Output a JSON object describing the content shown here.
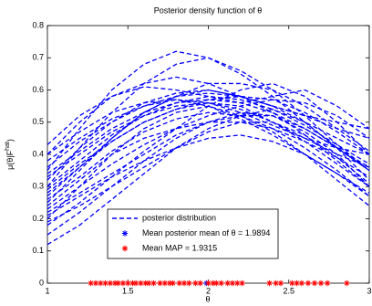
{
  "chart_data": {
    "type": "line",
    "title": "Posterior density function of θ",
    "xlabel": "θ",
    "ylabel": {
      "text": "μ(θ|F",
      "sup": "hat",
      "end": ")"
    },
    "x": [
      1,
      1.2,
      1.4,
      1.6,
      1.8,
      2,
      2.2,
      2.4,
      2.6,
      2.8,
      3
    ],
    "xlim": [
      1,
      3
    ],
    "ylim": [
      0,
      0.8
    ],
    "xticks": [
      1,
      1.5,
      2,
      2.5,
      3
    ],
    "yticks": [
      0,
      0.1,
      0.2,
      0.3,
      0.4,
      0.5,
      0.6,
      0.7,
      0.8
    ],
    "line_color": "#0000ff",
    "legend": [
      "posterior distribution",
      "Mean posterior mean of θ = 1.9894",
      "Mean MAP = 1.9315"
    ],
    "mean_color": "#0000ff",
    "map_color": "#ff0000",
    "mean_posterior": 1.9894,
    "map_points": [
      1.27,
      1.3,
      1.33,
      1.36,
      1.39,
      1.42,
      1.44,
      1.47,
      1.5,
      1.53,
      1.55,
      1.58,
      1.61,
      1.63,
      1.66,
      1.7,
      1.73,
      1.76,
      1.78,
      1.82,
      1.85,
      1.88,
      1.92,
      1.95,
      2.0,
      2.03,
      2.05,
      2.08,
      2.12,
      2.15,
      2.18,
      2.21,
      2.38,
      2.42,
      2.45,
      2.52,
      2.55,
      2.58,
      2.62,
      2.66,
      2.7,
      2.74,
      2.86
    ],
    "series": [
      {
        "values": [
          0.2,
          0.3,
          0.4,
          0.48,
          0.53,
          0.55,
          0.52,
          0.47,
          0.4,
          0.32,
          0.24
        ]
      },
      {
        "values": [
          0.25,
          0.35,
          0.45,
          0.53,
          0.58,
          0.6,
          0.58,
          0.53,
          0.46,
          0.38,
          0.3
        ]
      },
      {
        "values": [
          0.3,
          0.42,
          0.53,
          0.62,
          0.68,
          0.7,
          0.66,
          0.6,
          0.52,
          0.43,
          0.35
        ]
      },
      {
        "values": [
          0.35,
          0.48,
          0.6,
          0.68,
          0.72,
          0.7,
          0.65,
          0.58,
          0.5,
          0.42,
          0.35
        ]
      },
      {
        "values": [
          0.4,
          0.5,
          0.58,
          0.62,
          0.64,
          0.62,
          0.58,
          0.55,
          0.52,
          0.48,
          0.45
        ]
      },
      {
        "values": [
          0.43,
          0.52,
          0.58,
          0.61,
          0.6,
          0.58,
          0.56,
          0.58,
          0.6,
          0.55,
          0.48
        ]
      },
      {
        "values": [
          0.22,
          0.28,
          0.34,
          0.4,
          0.46,
          0.5,
          0.52,
          0.52,
          0.48,
          0.42,
          0.35
        ]
      },
      {
        "values": [
          0.15,
          0.22,
          0.3,
          0.38,
          0.45,
          0.5,
          0.53,
          0.52,
          0.47,
          0.4,
          0.3
        ]
      },
      {
        "values": [
          0.12,
          0.18,
          0.26,
          0.34,
          0.42,
          0.48,
          0.52,
          0.54,
          0.5,
          0.42,
          0.32
        ]
      },
      {
        "values": [
          0.28,
          0.36,
          0.44,
          0.5,
          0.54,
          0.56,
          0.55,
          0.5,
          0.44,
          0.37,
          0.3
        ]
      },
      {
        "values": [
          0.33,
          0.4,
          0.47,
          0.52,
          0.55,
          0.56,
          0.54,
          0.5,
          0.45,
          0.4,
          0.36
        ]
      },
      {
        "values": [
          0.38,
          0.45,
          0.51,
          0.55,
          0.57,
          0.56,
          0.53,
          0.49,
          0.45,
          0.42,
          0.4
        ]
      },
      {
        "values": [
          0.26,
          0.33,
          0.41,
          0.47,
          0.51,
          0.53,
          0.52,
          0.48,
          0.42,
          0.35,
          0.27
        ]
      },
      {
        "values": [
          0.21,
          0.27,
          0.33,
          0.38,
          0.42,
          0.45,
          0.46,
          0.44,
          0.4,
          0.34,
          0.27
        ]
      },
      {
        "values": [
          0.18,
          0.25,
          0.33,
          0.41,
          0.48,
          0.55,
          0.6,
          0.62,
          0.58,
          0.5,
          0.4
        ]
      },
      {
        "values": [
          0.32,
          0.42,
          0.5,
          0.56,
          0.59,
          0.6,
          0.58,
          0.55,
          0.52,
          0.5,
          0.48
        ]
      },
      {
        "values": [
          0.24,
          0.32,
          0.4,
          0.45,
          0.48,
          0.5,
          0.5,
          0.48,
          0.44,
          0.39,
          0.33
        ]
      },
      {
        "values": [
          0.3,
          0.38,
          0.46,
          0.52,
          0.56,
          0.58,
          0.57,
          0.54,
          0.49,
          0.43,
          0.37
        ]
      },
      {
        "values": [
          0.36,
          0.44,
          0.5,
          0.55,
          0.58,
          0.59,
          0.58,
          0.55,
          0.5,
          0.45,
          0.4
        ]
      },
      {
        "values": [
          0.27,
          0.36,
          0.45,
          0.53,
          0.58,
          0.62,
          0.62,
          0.6,
          0.55,
          0.48,
          0.41
        ]
      },
      {
        "values": [
          0.23,
          0.3,
          0.37,
          0.43,
          0.48,
          0.52,
          0.55,
          0.57,
          0.56,
          0.52,
          0.45
        ]
      },
      {
        "values": [
          0.4,
          0.47,
          0.53,
          0.56,
          0.57,
          0.55,
          0.51,
          0.46,
          0.4,
          0.34,
          0.28
        ]
      },
      {
        "values": [
          0.19,
          0.24,
          0.3,
          0.36,
          0.42,
          0.47,
          0.5,
          0.5,
          0.46,
          0.39,
          0.31
        ]
      },
      {
        "values": [
          0.34,
          0.41,
          0.48,
          0.53,
          0.56,
          0.57,
          0.56,
          0.53,
          0.48,
          0.42,
          0.36
        ]
      },
      {
        "values": [
          0.29,
          0.37,
          0.44,
          0.5,
          0.54,
          0.57,
          0.58,
          0.57,
          0.53,
          0.47,
          0.4
        ]
      }
    ]
  }
}
